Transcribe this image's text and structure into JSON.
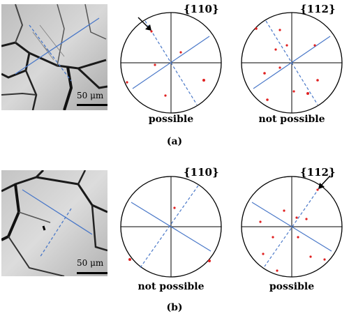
{
  "panels": [
    {
      "label": "(a)",
      "scale_bar": "50 μm",
      "pole_figures": [
        {
          "plane": "{110}",
          "verdict": "possible"
        },
        {
          "plane": "{112}",
          "verdict": "not possible"
        }
      ]
    },
    {
      "label": "(b)",
      "scale_bar": "50 μm",
      "pole_figures": [
        {
          "plane": "{110}",
          "verdict": "not possible"
        },
        {
          "plane": "{112}",
          "verdict": "possible"
        }
      ]
    }
  ],
  "colors": {
    "trace_line": "#4a78c8",
    "pole_point": "#e02020",
    "circle": "#000000"
  }
}
